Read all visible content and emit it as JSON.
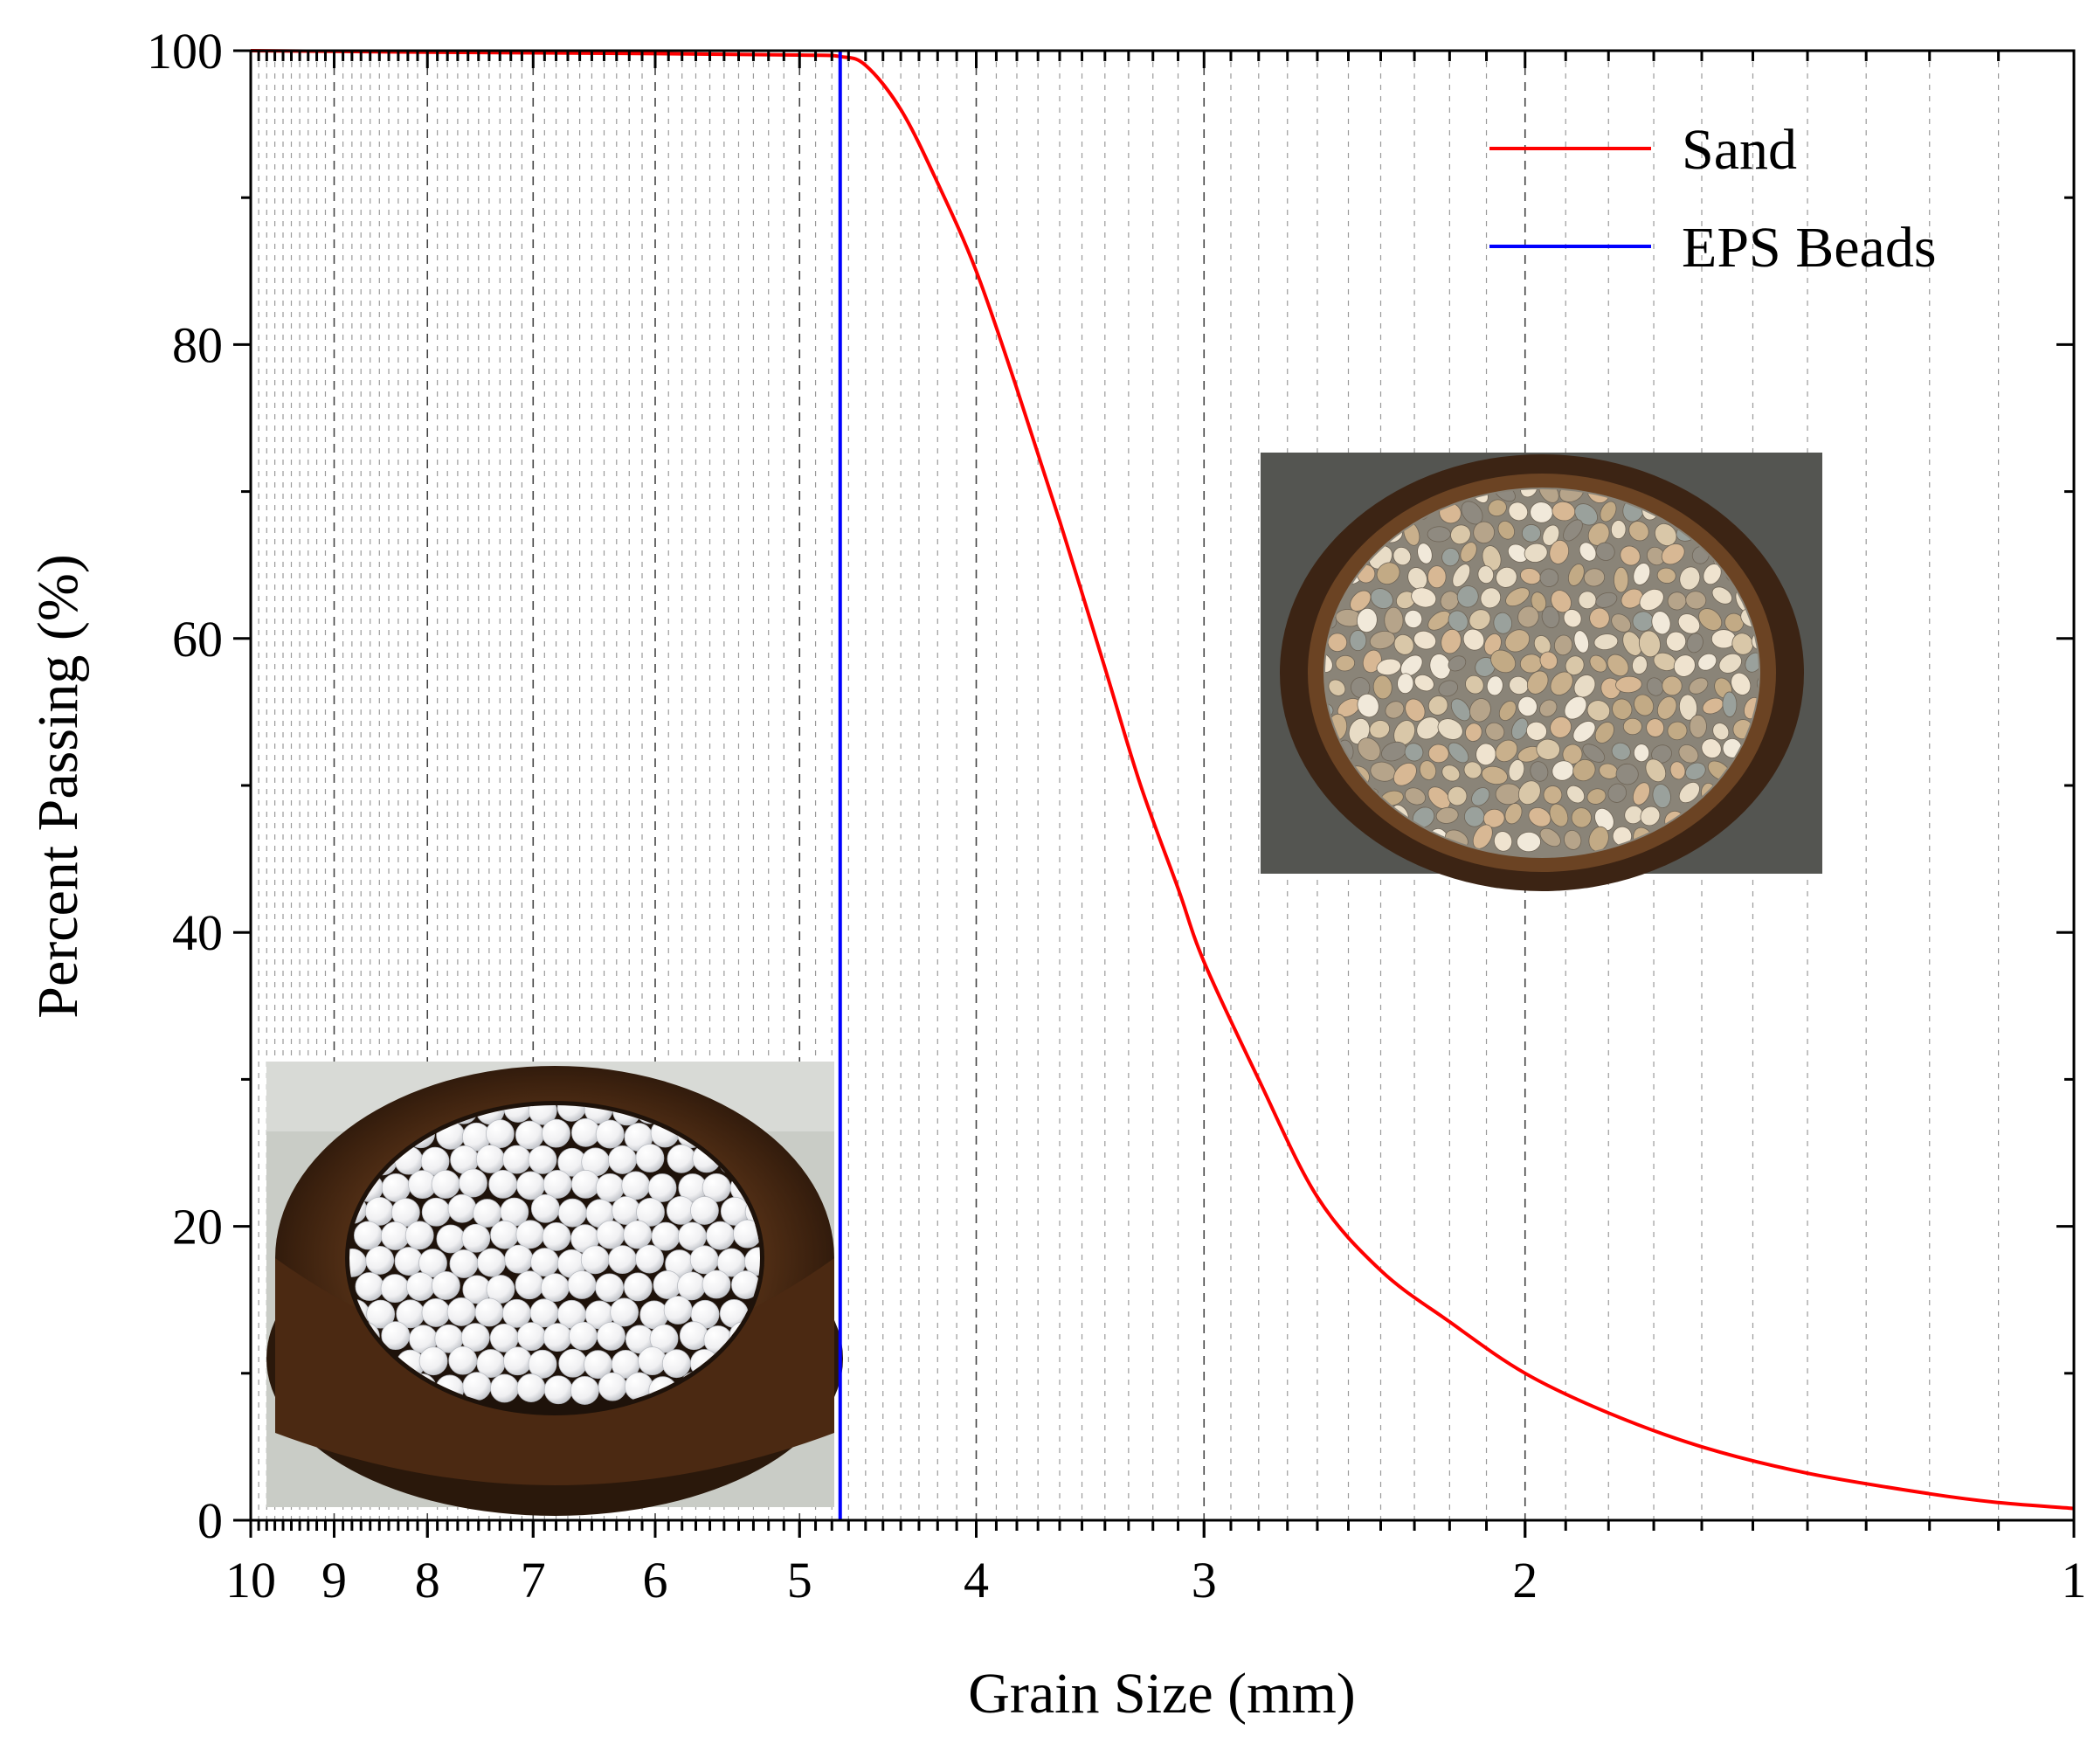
{
  "chart_data": {
    "type": "line",
    "xlabel": "Grain Size (mm)",
    "ylabel": "Percent Passing (%)",
    "x_scale": "log",
    "x_reversed": true,
    "xlim": [
      10,
      1
    ],
    "ylim": [
      0,
      100
    ],
    "x_ticks": [
      10,
      9,
      8,
      7,
      6,
      5,
      4,
      3,
      2,
      1
    ],
    "y_ticks": [
      0,
      20,
      40,
      60,
      80,
      100
    ],
    "grid": "vertical dashed",
    "legend_position": "top-right",
    "series": [
      {
        "name": "Sand",
        "color": "#ff0000",
        "x": [
          10,
          8,
          6,
          5,
          4.75,
          4.6,
          4.4,
          4.2,
          4.0,
          3.8,
          3.6,
          3.4,
          3.25,
          3.1,
          3.0,
          2.8,
          2.6,
          2.4,
          2.2,
          2.0,
          1.8,
          1.6,
          1.4,
          1.2,
          1.1,
          1.0
        ],
        "y": [
          100,
          99.9,
          99.8,
          99.7,
          99.6,
          99,
          96,
          91,
          85,
          77,
          68,
          58,
          50,
          43,
          38,
          30,
          22,
          17,
          13.5,
          10,
          7.3,
          5,
          3.2,
          1.8,
          1.2,
          0.8
        ]
      },
      {
        "name": "EPS Beads",
        "color": "#0000ff",
        "x": [
          4.75,
          4.75
        ],
        "y": [
          0,
          100
        ]
      }
    ]
  },
  "insets": [
    {
      "name": "eps-beads-photo",
      "depicts": "white EPS beads in a sieve"
    },
    {
      "name": "sand-photo",
      "depicts": "sand grains in a sieve"
    }
  ]
}
